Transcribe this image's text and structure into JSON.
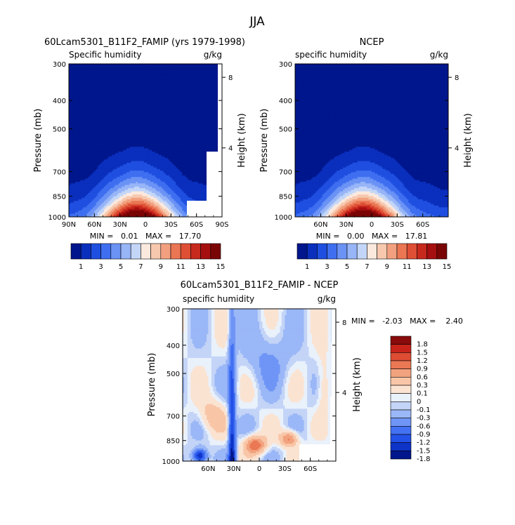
{
  "figure_title": "JJA",
  "colors": {
    "humidity_scale": [
      "#00168c",
      "#0a2fbd",
      "#1f4fe0",
      "#3f6ff0",
      "#6b93f5",
      "#97b5f7",
      "#c3d6f8",
      "#fbe9de",
      "#f7c8ae",
      "#f2a07f",
      "#ea7653",
      "#de4f35",
      "#c8291d",
      "#a50f10",
      "#7a0505"
    ],
    "diff_scale": [
      "#00168c",
      "#0d33c7",
      "#2452e8",
      "#4371f3",
      "#6f95f6",
      "#9ab7f7",
      "#c3d4f7",
      "#e9f1fb",
      "#fbe3d2",
      "#f8c6a7",
      "#f2a27e",
      "#ea7854",
      "#dd4c33",
      "#c7231a",
      "#8a0b0b"
    ],
    "land_mask": "#ffffff"
  },
  "chart_data": [
    {
      "type": "heatmap",
      "title": "60Lcam5301_B11F2_FAMIP (yrs 1979-1998)",
      "subtitle_left": "Specific humidity",
      "subtitle_right": "g/kg",
      "ylabel": "Pressure (mb)",
      "ylabel_right": "Height (km)",
      "y_ticks": [
        "300",
        "400",
        "500",
        "700",
        "850",
        "1000"
      ],
      "y_right_ticks": [
        "8",
        "4"
      ],
      "x_ticks": [
        "90N",
        "60N",
        "30N",
        "0",
        "30S",
        "60S",
        "90S"
      ],
      "stats": "MIN =   0.01   MAX =   17.70",
      "colorbar_labels": [
        "1",
        "3",
        "5",
        "7",
        "9",
        "11",
        "13",
        "15"
      ],
      "peak_value": 17.7,
      "peak_latitude": 10
    },
    {
      "type": "heatmap",
      "title": "NCEP",
      "subtitle_left": "specific humidity",
      "subtitle_right": "g/kg",
      "ylabel": "Pressure (mb)",
      "ylabel_right": "Height (km)",
      "y_ticks": [
        "300",
        "400",
        "500",
        "700",
        "850",
        "1000"
      ],
      "y_right_ticks": [
        "8",
        "4"
      ],
      "x_ticks": [
        "60N",
        "30N",
        "0",
        "30S",
        "60S"
      ],
      "stats": "MIN =   0.00   MAX =   17.81",
      "colorbar_labels": [
        "1",
        "3",
        "5",
        "7",
        "9",
        "11",
        "13",
        "15"
      ],
      "peak_value": 17.81,
      "peak_latitude": 10
    },
    {
      "type": "heatmap",
      "title": "60Lcam5301_B11F2_FAMIP - NCEP",
      "subtitle_left": "specific humidity",
      "subtitle_right": "g/kg",
      "ylabel": "Pressure (mb)",
      "ylabel_right": "Height (km)",
      "y_ticks": [
        "300",
        "400",
        "500",
        "700",
        "850",
        "1000"
      ],
      "y_right_ticks": [
        "8",
        "4"
      ],
      "x_ticks": [
        "60N",
        "30N",
        "0",
        "30S",
        "60S"
      ],
      "stats": "MIN =   -2.03   MAX =    2.40",
      "colorbar_labels": [
        "1.8",
        "1.5",
        "1.2",
        "0.9",
        "0.6",
        "0.3",
        "0.1",
        "0",
        "-0.1",
        "-0.3",
        "-0.6",
        "-0.9",
        "-1.2",
        "-1.5",
        "-1.8"
      ]
    }
  ]
}
